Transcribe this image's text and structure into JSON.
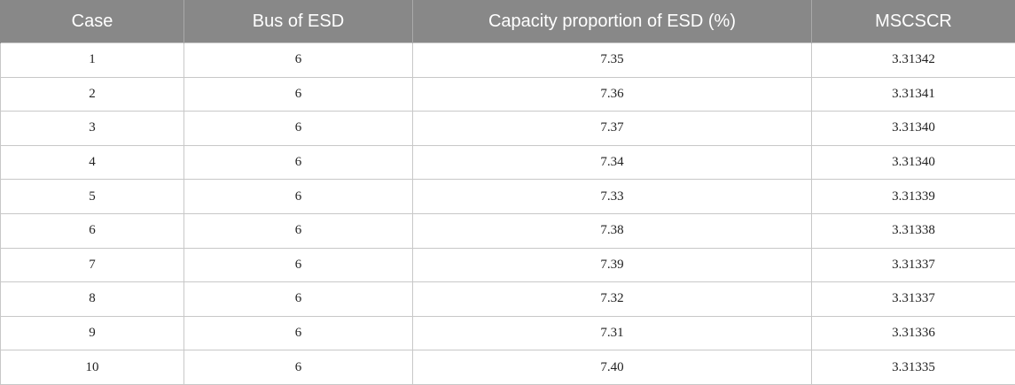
{
  "table": {
    "headers": [
      "Case",
      "Bus of ESD",
      "Capacity proportion of ESD (%)",
      "MSCSCR"
    ],
    "rows": [
      [
        "1",
        "6",
        "7.35",
        "3.31342"
      ],
      [
        "2",
        "6",
        "7.36",
        "3.31341"
      ],
      [
        "3",
        "6",
        "7.37",
        "3.31340"
      ],
      [
        "4",
        "6",
        "7.34",
        "3.31340"
      ],
      [
        "5",
        "6",
        "7.33",
        "3.31339"
      ],
      [
        "6",
        "6",
        "7.38",
        "3.31338"
      ],
      [
        "7",
        "6",
        "7.39",
        "3.31337"
      ],
      [
        "8",
        "6",
        "7.32",
        "3.31337"
      ],
      [
        "9",
        "6",
        "7.31",
        "3.31336"
      ],
      [
        "10",
        "6",
        "7.40",
        "3.31335"
      ]
    ]
  },
  "colors": {
    "header_background": "#888888",
    "header_text": "#ffffff",
    "grid_line": "#c8c8c8"
  }
}
